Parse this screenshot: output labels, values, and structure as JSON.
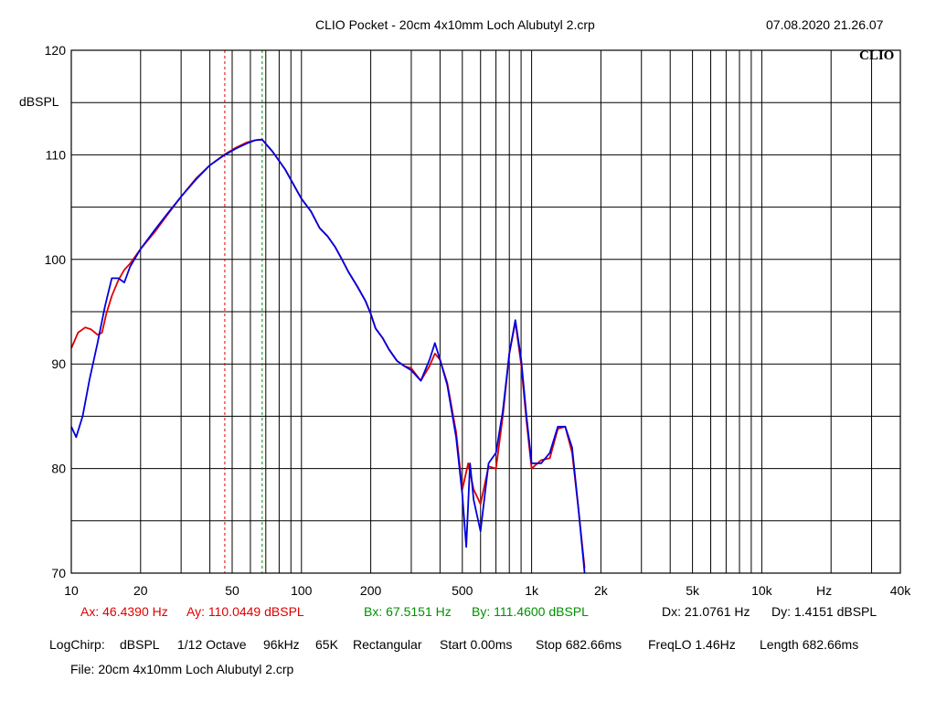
{
  "header": {
    "title": "CLIO Pocket - 20cm 4x10mm Loch Alubutyl 2.crp",
    "datetime": "07.08.2020 21.26.07",
    "logo": "CLIO"
  },
  "cursors": {
    "a": {
      "x_text": "Ax: 46.4390 Hz",
      "y_text": "Ay: 110.0449 dBSPL",
      "freq": 46.439,
      "color": "#e00000"
    },
    "b": {
      "x_text": "Bx: 67.5151 Hz",
      "y_text": "By: 111.4600 dBSPL",
      "freq": 67.5151,
      "color": "#009000"
    },
    "delta": {
      "x_text": "Dx: 21.0761 Hz",
      "y_text": "Dy: 1.4151 dBSPL"
    }
  },
  "settings": {
    "mode": "LogChirp:",
    "unit": "dBSPL",
    "smoothing": "1/12 Octave",
    "rate": "96kHz",
    "size": "65K",
    "window": "Rectangular",
    "start": "Start 0.00ms",
    "stop": "Stop 682.66ms",
    "freqlo": "FreqLO 1.46Hz",
    "length": "Length 682.66ms"
  },
  "file": "File: 20cm 4x10mm Loch Alubutyl 2.crp",
  "chart_data": {
    "type": "line",
    "title": "CLIO Pocket - 20cm 4x10mm Loch Alubutyl 2.crp",
    "xlabel": "Hz",
    "ylabel": "dBSPL",
    "x_scale": "log",
    "xlim": [
      10,
      40000
    ],
    "ylim": [
      70,
      120
    ],
    "grid": true,
    "x_tick_labels": [
      {
        "v": 10,
        "t": "10"
      },
      {
        "v": 20,
        "t": "20"
      },
      {
        "v": 50,
        "t": "50"
      },
      {
        "v": 100,
        "t": "100"
      },
      {
        "v": 200,
        "t": "200"
      },
      {
        "v": 500,
        "t": "500"
      },
      {
        "v": 1000,
        "t": "1k"
      },
      {
        "v": 2000,
        "t": "2k"
      },
      {
        "v": 5000,
        "t": "5k"
      },
      {
        "v": 10000,
        "t": "10k"
      },
      {
        "v": 40000,
        "t": "40k"
      }
    ],
    "y_ticks": [
      120,
      110,
      100,
      90,
      80,
      70
    ],
    "series": [
      {
        "color": "#e00000",
        "x": [
          10,
          10.7,
          11.5,
          12.2,
          13,
          13.6,
          14.2,
          15,
          16,
          17,
          18,
          20,
          23,
          26,
          30,
          35,
          40,
          46.4,
          52,
          58,
          63,
          67.5,
          75,
          85,
          100,
          110,
          120,
          130,
          140,
          150,
          160,
          175,
          190,
          200,
          210,
          225,
          240,
          260,
          280,
          300,
          330,
          360,
          380,
          400,
          430,
          470,
          500,
          530,
          560,
          600,
          650,
          700,
          750,
          800,
          850,
          900,
          950,
          1000,
          1100,
          1200,
          1300,
          1400,
          1500,
          1600,
          1700
        ],
        "y": [
          91.5,
          93.0,
          93.5,
          93.3,
          92.8,
          93.0,
          94.8,
          96.5,
          98.0,
          99.0,
          99.6,
          101.0,
          102.6,
          104.2,
          106.0,
          107.8,
          109.0,
          110.04,
          110.7,
          111.2,
          111.4,
          111.46,
          110.3,
          108.6,
          105.8,
          104.6,
          103.0,
          102.2,
          101.2,
          100.0,
          98.8,
          97.4,
          96.0,
          94.8,
          93.4,
          92.5,
          91.4,
          90.3,
          89.8,
          89.6,
          88.4,
          89.8,
          91.0,
          90.4,
          88.2,
          83.5,
          78.0,
          80.5,
          78.0,
          76.6,
          80.2,
          80.0,
          85.0,
          91.0,
          94.0,
          90.0,
          84.5,
          80.0,
          80.8,
          81.0,
          83.8,
          84.0,
          81.5,
          76.0,
          70.5
        ]
      },
      {
        "color": "#0000e0",
        "x": [
          10,
          10.5,
          11.2,
          12,
          13,
          14,
          15,
          16,
          17,
          18,
          20,
          23,
          26,
          30,
          35,
          40,
          46.4,
          52,
          58,
          63,
          67.5,
          75,
          85,
          100,
          110,
          120,
          130,
          140,
          150,
          160,
          175,
          190,
          200,
          210,
          225,
          240,
          260,
          280,
          300,
          330,
          360,
          380,
          400,
          430,
          470,
          500,
          520,
          540,
          560,
          600,
          650,
          700,
          750,
          800,
          850,
          900,
          950,
          1000,
          1100,
          1200,
          1300,
          1400,
          1500,
          1600,
          1700
        ],
        "y": [
          84.0,
          83.0,
          85.0,
          88.5,
          92.0,
          95.5,
          98.2,
          98.2,
          97.8,
          99.3,
          101.0,
          102.8,
          104.3,
          106.0,
          107.7,
          109.0,
          110.0,
          110.6,
          111.1,
          111.4,
          111.46,
          110.3,
          108.6,
          105.8,
          104.6,
          103.0,
          102.2,
          101.2,
          100.0,
          98.8,
          97.4,
          96.0,
          94.8,
          93.4,
          92.5,
          91.4,
          90.3,
          89.8,
          89.4,
          88.4,
          90.4,
          92.0,
          90.4,
          88.0,
          83.0,
          77.5,
          72.5,
          80.5,
          77.0,
          74.0,
          80.5,
          81.5,
          85.5,
          91.0,
          94.2,
          90.5,
          85.0,
          80.5,
          80.5,
          81.5,
          84.0,
          84.0,
          82.0,
          76.0,
          70.0
        ]
      }
    ]
  }
}
